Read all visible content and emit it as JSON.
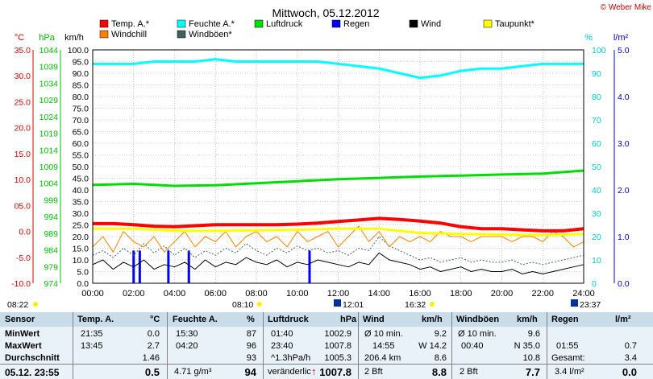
{
  "header": {
    "title": "Mittwoch, 05.12.2012",
    "copyright": "© Weber Mike"
  },
  "chart_data": {
    "type": "line",
    "title": "Mittwoch, 05.12.2012",
    "x_unit": "hours",
    "xlim": [
      0,
      24
    ],
    "x_tick_labels": [
      "00:00",
      "02:00",
      "04:00",
      "06:00",
      "08:00",
      "10:00",
      "12:00",
      "14:00",
      "16:00",
      "18:00",
      "20:00",
      "22:00",
      "24:00"
    ],
    "axes": {
      "temp_c": {
        "label": "°C",
        "color": "#dd0000",
        "range": [
          -10,
          35
        ],
        "ticks": [
          "35.0",
          "30.0",
          "25.0",
          "20.0",
          "15.0",
          "10.0",
          "05.0",
          "0.0",
          "-5.0",
          "-10.0"
        ]
      },
      "pressure": {
        "label": "hPa",
        "color": "#00c000",
        "range": [
          974,
          1044
        ],
        "ticks": [
          "1044",
          "1039",
          "1034",
          "1029",
          "1024",
          "1019",
          "1014",
          "1009",
          "1004",
          "999",
          "994",
          "989",
          "984",
          "979",
          "974"
        ]
      },
      "wind_kmh": {
        "label": "km/h",
        "color": "#000000",
        "range": [
          0,
          100
        ],
        "ticks": [
          "100.0",
          "95.0",
          "90.0",
          "85.0",
          "80.0",
          "75.0",
          "70.0",
          "65.0",
          "60.0",
          "55.0",
          "50.0",
          "45.0",
          "40.0",
          "35.0",
          "30.0",
          "25.0",
          "20.0",
          "15.0",
          "10.0",
          "5.0",
          "0.0"
        ]
      },
      "humidity": {
        "label": "%",
        "color": "#00cccc",
        "range": [
          0,
          100
        ],
        "ticks": [
          "100",
          "90",
          "80",
          "70",
          "60",
          "50",
          "40",
          "30",
          "20",
          "10",
          "0"
        ]
      },
      "rain": {
        "label": "l/m²",
        "color": "#0000cc",
        "range": [
          0,
          5
        ],
        "ticks": [
          "5.0",
          "4.0",
          "3.0",
          "2.0",
          "1.0",
          "0.0"
        ]
      }
    },
    "legend": [
      {
        "name": "Temp. A.*",
        "color": "#ff0000"
      },
      {
        "name": "Feuchte A.*",
        "color": "#00ffff"
      },
      {
        "name": "Luftdruck",
        "color": "#00dd00"
      },
      {
        "name": "Regen",
        "color": "#0000ff"
      },
      {
        "name": "Wind",
        "color": "#000000"
      },
      {
        "name": "Taupunkt*",
        "color": "#ffff00"
      },
      {
        "name": "Windchill",
        "color": "#ff8000"
      },
      {
        "name": "Windböen*",
        "color": "#406060"
      }
    ],
    "series": [
      {
        "name": "Temp. A.*",
        "axis": "temp_c",
        "color": "#ff0000",
        "width": 4,
        "x": [
          0,
          1,
          2,
          3,
          4,
          5,
          6,
          7,
          8,
          9,
          10,
          11,
          12,
          13,
          14,
          15,
          16,
          17,
          18,
          19,
          20,
          21,
          22,
          23,
          24
        ],
        "y": [
          1.5,
          1.5,
          1.3,
          1.0,
          0.9,
          1.1,
          1.3,
          1.3,
          1.3,
          1.3,
          1.4,
          1.6,
          1.9,
          2.2,
          2.5,
          2.3,
          2.0,
          1.6,
          0.9,
          0.5,
          0.5,
          0.3,
          0.1,
          0.1,
          0.5
        ]
      },
      {
        "name": "Taupunkt*",
        "axis": "temp_c",
        "color": "#ffff00",
        "width": 3,
        "x": [
          0,
          2,
          4,
          6,
          8,
          10,
          12,
          14,
          16,
          18,
          20,
          22,
          24
        ],
        "y": [
          0.5,
          0.5,
          0.1,
          0.1,
          0.2,
          0.3,
          0.5,
          0.5,
          -0.3,
          -0.5,
          -0.6,
          -0.7,
          -0.5
        ]
      },
      {
        "name": "Feuchte A.*",
        "axis": "humidity",
        "color": "#00ffff",
        "width": 3,
        "x": [
          0,
          1,
          2,
          3,
          4,
          5,
          6,
          7,
          8,
          9,
          10,
          11,
          12,
          13,
          14,
          15,
          16,
          17,
          18,
          19,
          20,
          21,
          22,
          23,
          24
        ],
        "y": [
          94,
          94,
          94,
          95,
          95,
          95,
          96,
          95,
          95,
          95,
          95,
          95,
          94,
          93,
          92,
          90,
          88,
          89,
          91,
          92,
          92,
          93,
          94,
          94,
          94
        ]
      },
      {
        "name": "Luftdruck",
        "axis": "pressure",
        "color": "#00dd00",
        "width": 3,
        "x": [
          0,
          2,
          4,
          6,
          8,
          10,
          12,
          14,
          16,
          18,
          20,
          22,
          24
        ],
        "y": [
          1003.5,
          1003.8,
          1003.2,
          1003.4,
          1004.0,
          1004.6,
          1005.2,
          1005.6,
          1006.0,
          1006.3,
          1006.6,
          1006.9,
          1007.8
        ]
      },
      {
        "name": "Windchill",
        "axis": "temp_c",
        "color": "#ff8000",
        "width": 1,
        "x": [
          0,
          0.5,
          1,
          1.5,
          2,
          2.5,
          3,
          3.5,
          4,
          4.5,
          5,
          5.5,
          6,
          6.5,
          7,
          7.5,
          8,
          8.5,
          9,
          9.5,
          10,
          10.5,
          11,
          11.5,
          12,
          12.5,
          13,
          13.5,
          14,
          14.5,
          15,
          15.5,
          16,
          16.5,
          17,
          17.5,
          18,
          18.5,
          19,
          19.5,
          20,
          20.5,
          21,
          21.5,
          22,
          22.5,
          23,
          23.5,
          24
        ],
        "y": [
          -3,
          -1,
          -4,
          0,
          -2,
          -3,
          -1,
          -4,
          -2,
          0,
          -3,
          -1,
          -2,
          0,
          -3,
          -1,
          0,
          -2,
          -1,
          -3,
          0,
          -2,
          -1,
          0,
          -3,
          -1,
          1,
          -2,
          0,
          -3,
          -1,
          -2,
          -1,
          -2,
          0,
          -1,
          -1,
          -2,
          -1,
          -1,
          -1,
          -2,
          -1,
          -1,
          -2,
          0,
          -1,
          -3,
          -2
        ]
      },
      {
        "name": "Wind",
        "axis": "wind_kmh",
        "color": "#000000",
        "width": 1,
        "x": [
          0,
          0.5,
          1,
          1.5,
          2,
          2.5,
          3,
          3.5,
          4,
          4.5,
          5,
          5.5,
          6,
          6.5,
          7,
          7.5,
          8,
          8.5,
          9,
          9.5,
          10,
          10.5,
          11,
          11.5,
          12,
          12.5,
          13,
          13.5,
          14,
          14.5,
          15,
          15.5,
          16,
          16.5,
          17,
          17.5,
          18,
          18.5,
          19,
          19.5,
          20,
          20.5,
          21,
          21.5,
          22,
          22.5,
          23,
          23.5,
          24
        ],
        "y": [
          8,
          10,
          6,
          9,
          7,
          10,
          6,
          8,
          7,
          9,
          6,
          10,
          7,
          9,
          8,
          11,
          9,
          8,
          10,
          7,
          9,
          8,
          10,
          9,
          8,
          7,
          9,
          8,
          13,
          10,
          9,
          8,
          6,
          7,
          5,
          6,
          7,
          5,
          6,
          5,
          5,
          6,
          4,
          5,
          4,
          5,
          6,
          7,
          8
        ]
      },
      {
        "name": "Windböen*",
        "axis": "wind_kmh",
        "color": "#406060",
        "width": 1,
        "dash": "2,2",
        "x": [
          0,
          0.5,
          1,
          1.5,
          2,
          2.5,
          3,
          3.5,
          4,
          4.5,
          5,
          5.5,
          6,
          6.5,
          7,
          7.5,
          8,
          8.5,
          9,
          9.5,
          10,
          10.5,
          11,
          11.5,
          12,
          12.5,
          13,
          13.5,
          14,
          14.5,
          15,
          15.5,
          16,
          16.5,
          17,
          17.5,
          18,
          18.5,
          19,
          19.5,
          20,
          20.5,
          21,
          21.5,
          22,
          22.5,
          23,
          23.5,
          24
        ],
        "y": [
          12,
          14,
          11,
          15,
          12,
          17,
          13,
          16,
          12,
          15,
          11,
          14,
          12,
          15,
          13,
          17,
          14,
          12,
          15,
          13,
          16,
          14,
          15,
          13,
          14,
          12,
          15,
          14,
          20,
          16,
          14,
          12,
          10,
          11,
          9,
          10,
          11,
          9,
          10,
          9,
          9,
          10,
          8,
          9,
          8,
          9,
          10,
          11,
          12
        ]
      }
    ],
    "rain_bars": {
      "axis": "rain",
      "color": "#0000ff",
      "x": [
        2.0,
        2.3,
        3.7,
        4.7,
        10.6
      ],
      "y": [
        0.7,
        0.7,
        0.7,
        0.7,
        0.7
      ]
    },
    "under_axis_markers": {
      "left": "08:22",
      "sun_rise": "08:10",
      "moon_a": "12:01",
      "sun_set": "16:32",
      "moon_b": "23:37"
    }
  },
  "table": {
    "columns": [
      {
        "title": "Sensor",
        "unit": ""
      },
      {
        "title": "Temp. A.",
        "unit": "°C"
      },
      {
        "title": "Feuchte A.",
        "unit": "%"
      },
      {
        "title": "Luftdruck",
        "unit": "hPa"
      },
      {
        "title": "Wind",
        "unit": "km/h"
      },
      {
        "title": "Windböen",
        "unit": "km/h"
      },
      {
        "title": "Regen",
        "unit": "l/m²"
      }
    ],
    "rows": {
      "min": {
        "label": "MinWert",
        "temp_t": "21:35",
        "temp_v": "0.0",
        "hum_t": "15:30",
        "hum_v": "87",
        "pres_t": "01:40",
        "pres_v": "1002.9",
        "wind_t": "Ø 10 min.",
        "wind_v": "9.2",
        "gust_t": "Ø 10 min.",
        "gust_v": "9.6",
        "rain_t": "",
        "rain_v": ""
      },
      "max": {
        "label": "MaxWert",
        "temp_t": "13:45",
        "temp_v": "2.7",
        "hum_t": "04:20",
        "hum_v": "96",
        "pres_t": "23:40",
        "pres_v": "1007.8",
        "wind_t": "14:55",
        "wind_v": "W 14.2",
        "gust_t": "00:40",
        "gust_v": "N 35.0",
        "rain_t": "01:55",
        "rain_v": "0.7"
      },
      "avg": {
        "label": "Durchschnitt",
        "temp_t": "",
        "temp_v": "1.46",
        "hum_t": "",
        "hum_v": "93",
        "pres_t": "^1.3hPa/h",
        "pres_v": "1005.3",
        "wind_t": "206.4 km",
        "wind_v": "8.6",
        "gust_t": "",
        "gust_v": "10.8",
        "rain_t": "Gesamt:",
        "rain_v": "3.4"
      },
      "cur": {
        "label": "05.12. 23:55",
        "temp_t": "",
        "temp_v": "0.5",
        "hum_t": "4.71 g/m³",
        "hum_v": "94",
        "pres_t": "veränderlich",
        "pres_v": "1007.8",
        "wind_t": "2 Bft",
        "wind_v": "8.8",
        "gust_t": "2 Bft",
        "gust_v": "7.7",
        "rain_t": "3.4 l/m²",
        "rain_v": "0.0"
      }
    }
  },
  "colors": {
    "table_bg": "#e8f2f8",
    "table_header_bg": "#c8dde9",
    "grid": "#808080",
    "axis": "#000000"
  }
}
